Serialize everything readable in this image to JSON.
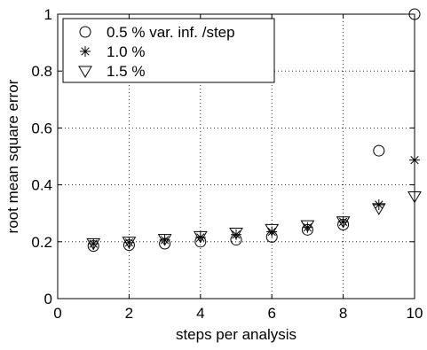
{
  "chart_data": {
    "type": "scatter",
    "xlabel": "steps per analysis",
    "ylabel": "root mean square error",
    "xlim": [
      0,
      10
    ],
    "ylim": [
      0,
      1
    ],
    "xticks": [
      0,
      2,
      4,
      6,
      8,
      10
    ],
    "yticks": [
      0,
      0.2,
      0.4,
      0.6,
      0.8,
      1
    ],
    "xtick_labels": [
      "0",
      "2",
      "4",
      "6",
      "8",
      "10"
    ],
    "ytick_labels": [
      "0",
      "0.2",
      "0.4",
      "0.6",
      "0.8",
      "1"
    ],
    "grid": true,
    "legend_position": "top-left",
    "series": [
      {
        "name": "0.5 % var. inf. /step",
        "marker": "circle",
        "x": [
          1,
          2,
          3,
          4,
          5,
          6,
          7,
          8,
          9,
          10
        ],
        "y": [
          0.185,
          0.188,
          0.193,
          0.2,
          0.207,
          0.217,
          0.242,
          0.26,
          0.52,
          1.0
        ]
      },
      {
        "name": "1.0 %",
        "marker": "asterisk",
        "x": [
          1,
          2,
          3,
          4,
          5,
          6,
          7,
          8,
          9,
          10
        ],
        "y": [
          0.193,
          0.197,
          0.206,
          0.215,
          0.225,
          0.235,
          0.25,
          0.27,
          0.33,
          0.487
        ]
      },
      {
        "name": "1.5 %",
        "marker": "triangle-down",
        "x": [
          1,
          2,
          3,
          4,
          5,
          6,
          7,
          8,
          9,
          10
        ],
        "y": [
          0.195,
          0.2,
          0.21,
          0.22,
          0.232,
          0.245,
          0.258,
          0.272,
          0.318,
          0.36
        ]
      }
    ]
  }
}
